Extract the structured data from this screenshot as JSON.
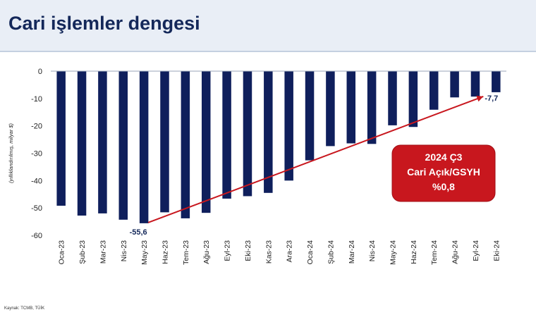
{
  "header": {
    "title": "Cari işlemler dengesi"
  },
  "footer": {
    "source": "Kaynak: TCMB, TÜİK"
  },
  "colors": {
    "bar": "#0f1f5c",
    "arrow": "#c8171e",
    "callout_bg": "#c8171e",
    "callout_text": "#ffffff",
    "header_bg": "#e9eef6"
  },
  "chart_data": {
    "type": "bar",
    "ylabel": "(yıllıklandırılmış, milyar $)",
    "ylim": [
      -60,
      0
    ],
    "yticks": [
      0,
      -10,
      -20,
      -30,
      -40,
      -50,
      -60
    ],
    "grid": false,
    "categories": [
      "Oca-23",
      "Şub-23",
      "Mar-23",
      "Nis-23",
      "May-23",
      "Haz-23",
      "Tem-23",
      "Ağu-23",
      "Eyl-23",
      "Eki-23",
      "Kas-23",
      "Ara-23",
      "Oca-24",
      "Şub-24",
      "Mar-24",
      "Nis-24",
      "May-24",
      "Haz-24",
      "Tem-24",
      "Ağu-24",
      "Eyl-24",
      "Eki-24"
    ],
    "values": [
      -49.2,
      -52.8,
      -52.0,
      -54.3,
      -55.6,
      -51.6,
      -53.8,
      -51.8,
      -46.6,
      -45.7,
      -44.5,
      -40.0,
      -32.6,
      -27.4,
      -26.4,
      -26.6,
      -19.8,
      -20.4,
      -14.1,
      -9.6,
      -9.3,
      -7.7
    ],
    "annotations": [
      {
        "text": "-55,6",
        "category": "May-23",
        "value": -55.6
      },
      {
        "text": "-7,7",
        "category": "Eki-24",
        "value": -7.7
      }
    ],
    "trend_arrow": {
      "from": {
        "category": "May-23",
        "value": -55.6
      },
      "to": {
        "category": "Eki-24",
        "value": -7.7
      }
    },
    "callout": {
      "lines": [
        "2024 Ç3",
        "Cari Açık/GSYH",
        "%0,8"
      ]
    }
  }
}
